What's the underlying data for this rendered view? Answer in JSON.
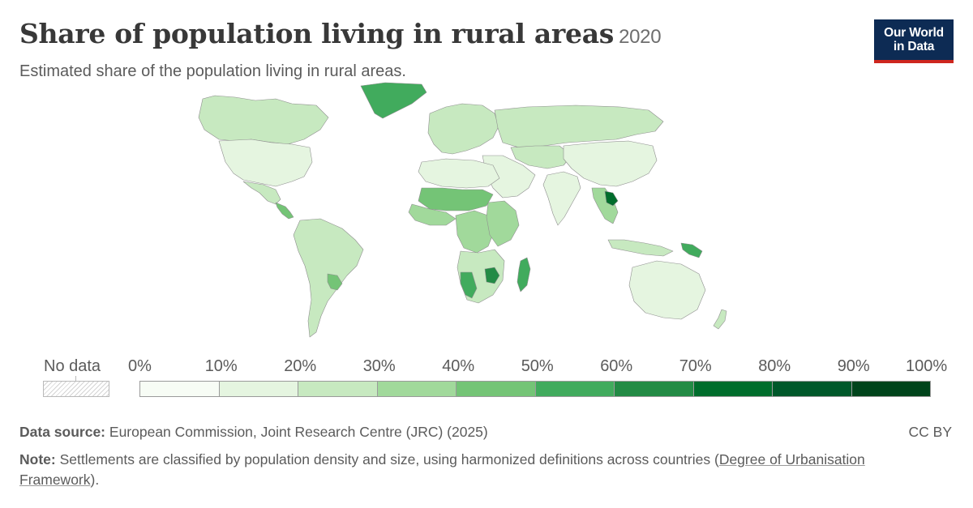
{
  "header": {
    "title": "Share of population living in rural areas",
    "year": "2020",
    "subtitle": "Estimated share of the population living in rural areas."
  },
  "logo": {
    "line1": "Our World",
    "line2": "in Data",
    "bg_color": "#0d2b54",
    "accent_color": "#ce261e"
  },
  "legend": {
    "no_data_label": "No data",
    "tick_labels": [
      "0%",
      "10%",
      "20%",
      "30%",
      "40%",
      "50%",
      "60%",
      "70%",
      "80%",
      "90%",
      "100%"
    ],
    "bin_colors": [
      "#f7fcf5",
      "#e5f5e0",
      "#c7e9c0",
      "#a1d99b",
      "#74c476",
      "#41ab5d",
      "#238b45",
      "#006d2c",
      "#00582a",
      "#00441b"
    ]
  },
  "footer": {
    "source_label": "Data source:",
    "source_text": "European Commission, Joint Research Centre (JRC) (2025)",
    "license": "CC BY",
    "note_label": "Note:",
    "note_text": "Settlements are classified by population density and size, using harmonized definitions across countries (",
    "note_link": "Degree of Urbanisation Framework",
    "note_end": ")."
  },
  "chart_data": {
    "type": "choropleth",
    "metric": "Share of population living in rural areas",
    "year": 2020,
    "value_range": [
      0,
      100
    ],
    "unit": "%",
    "regions": [
      {
        "name": "Canada",
        "bin": 2
      },
      {
        "name": "United States",
        "bin": 1
      },
      {
        "name": "Mexico",
        "bin": 2
      },
      {
        "name": "Central America",
        "bin": 4
      },
      {
        "name": "South America",
        "bin": 2
      },
      {
        "name": "Paraguay",
        "bin": 4
      },
      {
        "name": "Greenland",
        "bin": 5
      },
      {
        "name": "Europe",
        "bin": 2
      },
      {
        "name": "Russia",
        "bin": 2
      },
      {
        "name": "Central Asia",
        "bin": 2
      },
      {
        "name": "Middle East",
        "bin": 1
      },
      {
        "name": "India",
        "bin": 1
      },
      {
        "name": "China",
        "bin": 1
      },
      {
        "name": "Southeast Asia",
        "bin": 3
      },
      {
        "name": "Laos",
        "bin": 7
      },
      {
        "name": "North Africa",
        "bin": 1
      },
      {
        "name": "Sahel",
        "bin": 4
      },
      {
        "name": "West Africa",
        "bin": 3
      },
      {
        "name": "Central Africa",
        "bin": 3
      },
      {
        "name": "East Africa",
        "bin": 3
      },
      {
        "name": "Southern Africa",
        "bin": 2
      },
      {
        "name": "Namibia",
        "bin": 5
      },
      {
        "name": "Zimbabwe",
        "bin": 6
      },
      {
        "name": "Madagascar",
        "bin": 5
      },
      {
        "name": "Papua New Guinea",
        "bin": 5
      },
      {
        "name": "Indonesia",
        "bin": 2
      },
      {
        "name": "Australia",
        "bin": 1
      },
      {
        "name": "New Zealand",
        "bin": 2
      }
    ]
  }
}
